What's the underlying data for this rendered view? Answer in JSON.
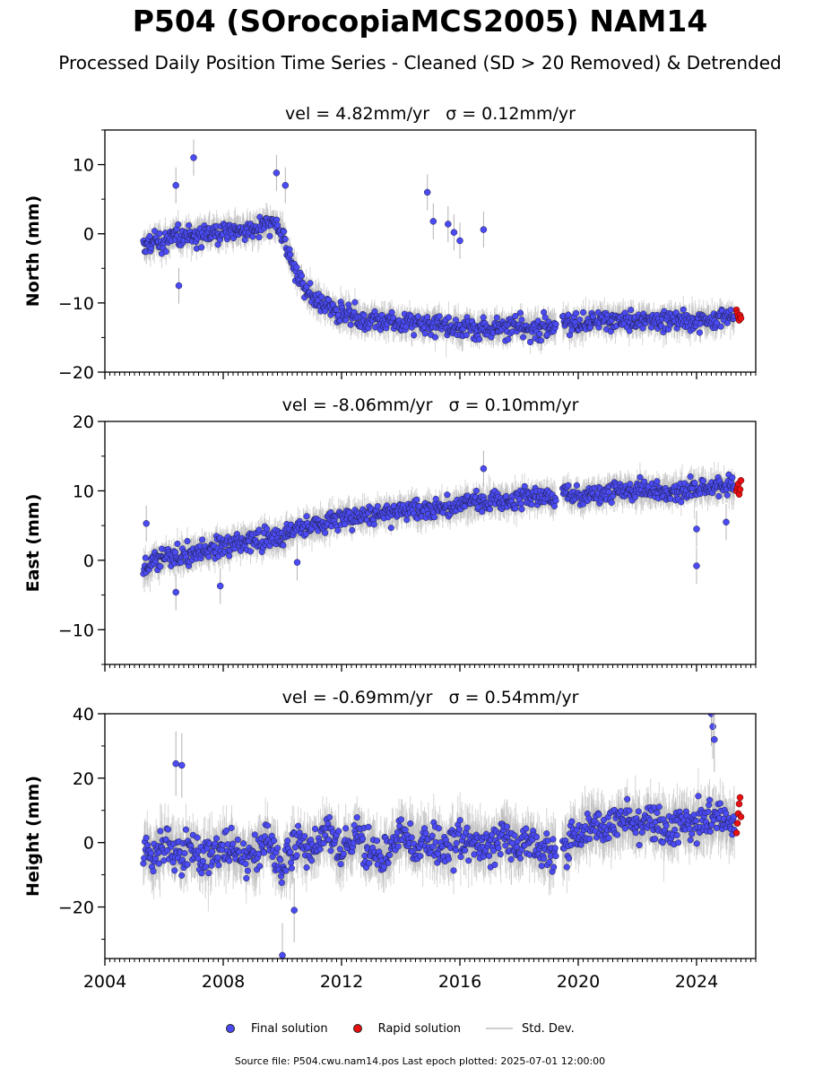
{
  "header": {
    "title": "P504 (SOrocopiaMCS2005) NAM14",
    "subtitle": "Processed Daily Position Time Series - Cleaned (SD > 20 Removed) & Detrended"
  },
  "legend": {
    "final": "Final solution",
    "rapid": "Rapid solution",
    "std": "Std. Dev."
  },
  "footer": {
    "source": "Source file: P504.cwu.nam14.pos  Last epoch plotted: 2025-07-01 12:00:00"
  },
  "colors": {
    "final": "#4b4bf5",
    "rapid": "#e81010",
    "std_dev": "#b4b4b4"
  },
  "chart_data": [
    {
      "type": "scatter",
      "title": "vel = 4.82mm/yr   σ = 0.12mm/yr",
      "ylabel": "North (mm)",
      "xlim": [
        2004.0,
        2026.0
      ],
      "ylim": [
        -20,
        15
      ],
      "yticks": [
        -20,
        -10,
        0,
        10
      ],
      "xticks": [
        2004,
        2008,
        2012,
        2016,
        2020,
        2024
      ],
      "grid": false,
      "series": [
        {
          "name": "Final solution",
          "x": [
            2005.3,
            2005.5,
            2005.8,
            2006.1,
            2006.4,
            2006.7,
            2007.0,
            2007.4,
            2007.8,
            2008.2,
            2008.6,
            2009.0,
            2009.4,
            2009.8,
            2010.1,
            2010.3,
            2010.5,
            2010.8,
            2011.1,
            2011.5,
            2012.0,
            2012.5,
            2013.0,
            2013.5,
            2014.0,
            2014.5,
            2015.0,
            2015.5,
            2016.0,
            2016.5,
            2017.0,
            2017.5,
            2018.0,
            2018.5,
            2019.0,
            2019.5,
            2020.0,
            2020.5,
            2021.0,
            2021.5,
            2022.0,
            2022.5,
            2023.0,
            2023.5,
            2024.0,
            2024.5,
            2025.0,
            2025.3
          ],
          "y": [
            -2.0,
            -1.5,
            -1.0,
            -1.0,
            -0.5,
            0.0,
            -0.5,
            0.5,
            0.0,
            0.5,
            0.5,
            0.5,
            1.0,
            1.0,
            -1.0,
            -4.0,
            -6.0,
            -8.0,
            -9.5,
            -10.5,
            -11.5,
            -12.0,
            -12.5,
            -12.5,
            -13.0,
            -13.0,
            -13.0,
            -13.5,
            -13.5,
            -13.5,
            -13.5,
            -13.5,
            -13.5,
            -14.0,
            -13.5,
            -13.0,
            -13.0,
            -12.5,
            -12.5,
            -12.5,
            -12.5,
            -12.5,
            -12.5,
            -12.5,
            -12.5,
            -12.5,
            -12.0,
            -12.0
          ]
        },
        {
          "name": "Rapid solution",
          "x": [
            2025.35,
            2025.38,
            2025.41,
            2025.44,
            2025.47,
            2025.5
          ],
          "y": [
            -11.0,
            -11.5,
            -12.0,
            -12.5,
            -11.8,
            -12.2
          ]
        }
      ],
      "outliers": {
        "x": [
          2007.0,
          2006.4,
          2009.8,
          2010.1,
          2014.9,
          2015.1,
          2015.6,
          2015.8,
          2016.0,
          2016.8,
          2006.5
        ],
        "y": [
          11.0,
          7.0,
          8.8,
          7.0,
          6.0,
          1.8,
          1.4,
          0.2,
          -1.0,
          0.6,
          -7.5
        ]
      }
    },
    {
      "type": "scatter",
      "title": "vel = -8.06mm/yr   σ = 0.10mm/yr",
      "ylabel": "East (mm)",
      "xlim": [
        2004.0,
        2026.0
      ],
      "ylim": [
        -15,
        20
      ],
      "yticks": [
        -10,
        0,
        10,
        20
      ],
      "xticks": [
        2004,
        2008,
        2012,
        2016,
        2020,
        2024
      ],
      "grid": false,
      "series": [
        {
          "name": "Final solution",
          "x": [
            2005.3,
            2005.6,
            2006.0,
            2006.5,
            2007.0,
            2007.5,
            2008.0,
            2008.5,
            2009.0,
            2009.5,
            2010.0,
            2010.5,
            2011.0,
            2011.5,
            2012.0,
            2012.5,
            2013.0,
            2013.5,
            2014.0,
            2014.5,
            2015.0,
            2015.5,
            2016.0,
            2016.5,
            2017.0,
            2017.5,
            2018.0,
            2018.5,
            2019.0,
            2019.5,
            2020.0,
            2020.5,
            2021.0,
            2021.5,
            2022.0,
            2022.5,
            2023.0,
            2023.5,
            2024.0,
            2024.5,
            2025.0,
            2025.3
          ],
          "y": [
            -1.5,
            -0.5,
            0.5,
            0.5,
            1.0,
            1.5,
            2.0,
            2.5,
            3.0,
            3.0,
            3.5,
            4.5,
            5.0,
            5.5,
            6.0,
            6.5,
            6.5,
            7.0,
            7.0,
            7.5,
            7.5,
            7.5,
            8.0,
            8.0,
            8.5,
            8.5,
            9.0,
            9.0,
            9.0,
            9.5,
            9.0,
            9.5,
            10.0,
            10.0,
            10.0,
            10.0,
            10.0,
            10.0,
            10.5,
            10.5,
            10.5,
            10.5
          ]
        },
        {
          "name": "Rapid solution",
          "x": [
            2025.35,
            2025.38,
            2025.41,
            2025.44,
            2025.47,
            2025.5
          ],
          "y": [
            10.0,
            10.5,
            11.0,
            9.5,
            10.2,
            11.5
          ]
        }
      ],
      "outliers": {
        "x": [
          2005.4,
          2006.4,
          2007.9,
          2010.5,
          2016.8,
          2024.0,
          2024.0,
          2025.0
        ],
        "y": [
          5.3,
          -4.6,
          -3.7,
          -0.3,
          13.2,
          -0.8,
          4.5,
          5.5
        ]
      }
    },
    {
      "type": "scatter",
      "title": "vel = -0.69mm/yr   σ = 0.54mm/yr",
      "ylabel": "Height (mm)",
      "xlim": [
        2004.0,
        2026.0
      ],
      "ylim": [
        -36,
        40
      ],
      "yticks": [
        -20,
        0,
        20,
        40
      ],
      "xticks": [
        2004,
        2008,
        2012,
        2016,
        2020,
        2024
      ],
      "grid": false,
      "series": [
        {
          "name": "Final solution",
          "x": [
            2005.3,
            2005.6,
            2006.0,
            2006.5,
            2007.0,
            2007.5,
            2008.0,
            2008.5,
            2009.0,
            2009.5,
            2010.0,
            2010.5,
            2011.0,
            2011.5,
            2012.0,
            2012.5,
            2013.0,
            2013.5,
            2014.0,
            2014.5,
            2015.0,
            2015.5,
            2016.0,
            2016.5,
            2017.0,
            2017.5,
            2018.0,
            2018.5,
            2019.0,
            2019.5,
            2020.0,
            2020.5,
            2021.0,
            2021.5,
            2022.0,
            2022.5,
            2023.0,
            2023.5,
            2024.0,
            2024.5,
            2025.0,
            2025.3
          ],
          "y": [
            -2,
            -5,
            0,
            -4,
            -2,
            -6,
            0,
            -3,
            -5,
            2,
            -8,
            0,
            -2,
            4,
            -3,
            2,
            -1,
            -4,
            3,
            -2,
            1,
            -3,
            2,
            0,
            -2,
            3,
            -1,
            0,
            -3,
            -2,
            3,
            6,
            4,
            8,
            5,
            7,
            4,
            6,
            5,
            8,
            6,
            7
          ]
        },
        {
          "name": "Rapid solution",
          "x": [
            2025.35,
            2025.38,
            2025.41,
            2025.44,
            2025.47,
            2025.5
          ],
          "y": [
            3,
            6,
            9,
            12,
            14,
            8
          ]
        }
      ],
      "outliers": {
        "x": [
          2006.4,
          2006.6,
          2010.0,
          2010.4,
          2024.5,
          2024.55,
          2024.6
        ],
        "y": [
          24.5,
          24.0,
          -35.0,
          -21.0,
          40.0,
          36.0,
          32.0
        ]
      }
    }
  ]
}
